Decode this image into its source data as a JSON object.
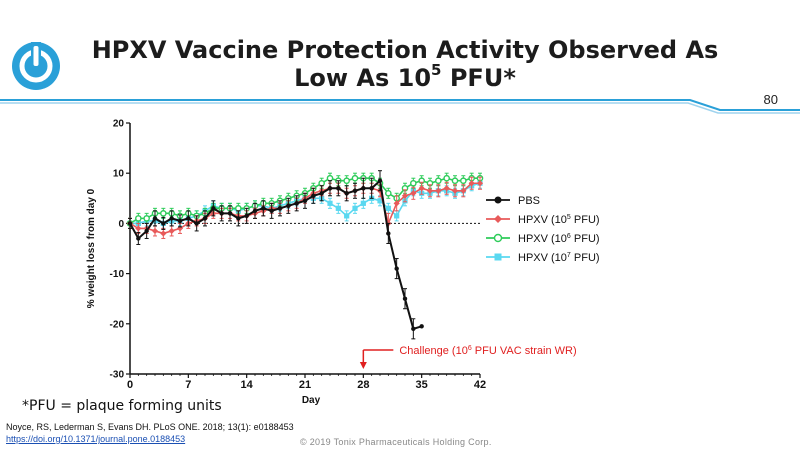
{
  "slide": {
    "title_line1": "HPXV Vaccine Protection Activity Observed As",
    "title_line2_prefix": "Low As 10",
    "title_line2_sup": "5",
    "title_line2_suffix": " PFU*",
    "page_number": "80",
    "footnote": "*PFU = plaque forming units",
    "citation": "Noyce, RS, Lederman S, Evans DH. PLoS ONE. 2018; 13(1): e0188453",
    "citation_link": "https://doi.org/10.1371/journal.pone.0188453",
    "copyright": "© 2019 Tonix Pharmaceuticals Holding Corp.",
    "colors": {
      "accent": "#2aa0d8",
      "header_rule": "#2aa0d8",
      "challenge": "#e02020"
    }
  },
  "chart_data": {
    "type": "line",
    "xlabel": "Day",
    "ylabel": "% weight loss from day 0",
    "xlim": [
      0,
      42
    ],
    "ylim": [
      -30,
      20
    ],
    "xticks": [
      0,
      7,
      14,
      21,
      28,
      35,
      42
    ],
    "yticks": [
      -30,
      -20,
      -10,
      0,
      10,
      20
    ],
    "reference_line_y": 0,
    "grid": false,
    "legend_position": "right",
    "annotation": {
      "text_prefix": "Challenge (10",
      "text_sup": "6",
      "text_suffix": " PFU VAC strain WR)",
      "x": 28,
      "color": "#e02020"
    },
    "series": [
      {
        "name": "PBS",
        "sup": "",
        "marker": "circle-filled",
        "color": "#111111",
        "x": [
          0,
          1,
          2,
          3,
          4,
          5,
          6,
          7,
          8,
          9,
          10,
          11,
          12,
          13,
          14,
          15,
          16,
          17,
          18,
          19,
          20,
          21,
          22,
          23,
          24,
          25,
          26,
          27,
          28,
          29,
          30,
          31,
          32,
          33,
          34,
          35
        ],
        "y": [
          0,
          -3,
          -1.5,
          1,
          0,
          1,
          0.5,
          1,
          0,
          1,
          3,
          2,
          2,
          1,
          1.5,
          2.5,
          3,
          2.5,
          3,
          3.5,
          4,
          4.5,
          5.5,
          6,
          7,
          7,
          6,
          6.5,
          7,
          7,
          8.5,
          -2,
          -9,
          -15,
          -21,
          -20.5
        ],
        "err": [
          1,
          1.2,
          1.5,
          1.5,
          1.2,
          1.5,
          1.2,
          1.5,
          1.5,
          1.5,
          1.5,
          1.5,
          1.5,
          1.5,
          1.5,
          1.5,
          1.5,
          1.5,
          1.5,
          1.5,
          1.5,
          1.5,
          1.5,
          1.5,
          1.5,
          1.5,
          1.5,
          1.5,
          2,
          2,
          2,
          2,
          2,
          2,
          2,
          0
        ]
      },
      {
        "name": "HPXV (10",
        "sup": "5",
        "suffix": " PFU)",
        "marker": "diamond",
        "color": "#e85a5a",
        "x": [
          0,
          1,
          2,
          3,
          4,
          5,
          6,
          7,
          8,
          9,
          10,
          11,
          12,
          13,
          14,
          15,
          16,
          17,
          18,
          19,
          20,
          21,
          22,
          23,
          24,
          25,
          26,
          27,
          28,
          29,
          30,
          31,
          32,
          33,
          34,
          35,
          36,
          37,
          38,
          39,
          40,
          41,
          42
        ],
        "y": [
          0,
          -1,
          -1,
          -1.5,
          -2,
          -1.5,
          -1,
          0,
          0.5,
          1,
          2,
          2,
          2,
          1.5,
          1.5,
          2,
          2.5,
          3,
          3,
          3.5,
          4,
          5,
          6,
          6.5,
          7,
          7,
          6,
          6.5,
          7,
          7,
          6.5,
          0,
          4,
          5.5,
          6,
          7,
          6.5,
          6.5,
          7,
          6.5,
          6.5,
          8,
          8
        ],
        "err": [
          1,
          1,
          1,
          1,
          1,
          1,
          1,
          1,
          1,
          1,
          1,
          1,
          1,
          1,
          1,
          1,
          1,
          1,
          1,
          1,
          1,
          1,
          1,
          1,
          1,
          1,
          1,
          1,
          1,
          1,
          1.2,
          2,
          1.5,
          1.2,
          1.2,
          1.2,
          1.2,
          1.2,
          1.2,
          1.2,
          1.2,
          1.2,
          1.2
        ]
      },
      {
        "name": "HPXV (10",
        "sup": "6",
        "suffix": " PFU)",
        "marker": "circle-open",
        "color": "#2ecc5a",
        "x": [
          0,
          1,
          2,
          3,
          4,
          5,
          6,
          7,
          8,
          9,
          10,
          11,
          12,
          13,
          14,
          15,
          16,
          17,
          18,
          19,
          20,
          21,
          22,
          23,
          24,
          25,
          26,
          27,
          28,
          29,
          30,
          31,
          32,
          33,
          34,
          35,
          36,
          37,
          38,
          39,
          40,
          41,
          42
        ],
        "y": [
          0,
          1,
          1,
          2,
          2,
          2,
          1.5,
          2,
          1.5,
          2,
          3,
          3,
          3,
          3,
          3,
          3.5,
          4,
          4,
          4.5,
          5,
          5.5,
          6,
          7,
          8,
          9,
          8.5,
          8.5,
          9,
          9,
          9,
          8,
          6,
          5,
          7,
          8,
          8.5,
          8,
          8.5,
          9,
          8.5,
          8.5,
          9,
          9
        ],
        "err": [
          1,
          1,
          1,
          1,
          1,
          1,
          1,
          1,
          1,
          1,
          1,
          1,
          1,
          1,
          1,
          1,
          1,
          1,
          1,
          1,
          1,
          1,
          1,
          1,
          1,
          1,
          1,
          1,
          1,
          1,
          1,
          1,
          1,
          1,
          1,
          1,
          1,
          1,
          1,
          1,
          1,
          1,
          1
        ]
      },
      {
        "name": "HPXV (10",
        "sup": "7",
        "suffix": " PFU)",
        "marker": "square",
        "color": "#5ad8f0",
        "x": [
          0,
          1,
          2,
          3,
          4,
          5,
          6,
          7,
          8,
          9,
          10,
          11,
          12,
          13,
          14,
          15,
          16,
          17,
          18,
          19,
          20,
          21,
          22,
          23,
          24,
          25,
          26,
          27,
          28,
          29,
          30,
          31,
          32,
          33,
          34,
          35,
          36,
          37,
          38,
          39,
          40,
          41,
          42
        ],
        "y": [
          0,
          0,
          0.5,
          0.5,
          0,
          0.5,
          0.5,
          1,
          1.5,
          2.5,
          3.5,
          3,
          3,
          2.5,
          3,
          3.5,
          3.5,
          3,
          3.5,
          4,
          4.5,
          5,
          5,
          5,
          4,
          3,
          1.5,
          3,
          4,
          5,
          4.5,
          3,
          1.5,
          4.5,
          6.5,
          6,
          6,
          6.5,
          6.5,
          6,
          6.5,
          7.5,
          8
        ],
        "err": [
          1,
          1,
          1,
          1,
          1,
          1,
          1,
          1,
          1,
          1,
          1,
          1,
          1,
          1,
          1,
          1,
          1,
          1,
          1,
          1,
          1,
          1,
          1,
          1,
          1,
          1,
          1,
          1,
          1,
          1,
          1,
          1,
          1,
          1,
          1,
          1,
          1,
          1,
          1,
          1,
          1,
          1,
          1
        ]
      }
    ]
  }
}
